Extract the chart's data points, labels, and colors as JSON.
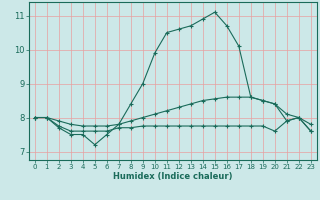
{
  "title": "",
  "xlabel": "Humidex (Indice chaleur)",
  "background_color": "#cce8e8",
  "grid_color": "#e8a0a0",
  "line_color": "#1a6b5a",
  "xlim": [
    -0.5,
    23.5
  ],
  "ylim": [
    6.75,
    11.4
  ],
  "xticks": [
    0,
    1,
    2,
    3,
    4,
    5,
    6,
    7,
    8,
    9,
    10,
    11,
    12,
    13,
    14,
    15,
    16,
    17,
    18,
    19,
    20,
    21,
    22,
    23
  ],
  "yticks": [
    7,
    8,
    9,
    10,
    11
  ],
  "line1_x": [
    0,
    1,
    2,
    3,
    4,
    5,
    6,
    7,
    8,
    9,
    10,
    11,
    12,
    13,
    14,
    15,
    16,
    17,
    18,
    19,
    20,
    21,
    22,
    23
  ],
  "line1_y": [
    8.0,
    8.0,
    7.7,
    7.5,
    7.5,
    7.2,
    7.5,
    7.8,
    8.4,
    9.0,
    9.9,
    10.5,
    10.6,
    10.7,
    10.9,
    11.1,
    10.7,
    10.1,
    8.6,
    8.5,
    8.4,
    7.9,
    8.0,
    7.6
  ],
  "line2_x": [
    0,
    1,
    2,
    3,
    4,
    5,
    6,
    7,
    8,
    9,
    10,
    11,
    12,
    13,
    14,
    15,
    16,
    17,
    18,
    19,
    20,
    21,
    22,
    23
  ],
  "line2_y": [
    8.0,
    8.0,
    7.9,
    7.8,
    7.75,
    7.75,
    7.75,
    7.8,
    7.9,
    8.0,
    8.1,
    8.2,
    8.3,
    8.4,
    8.5,
    8.55,
    8.6,
    8.6,
    8.6,
    8.5,
    8.4,
    8.1,
    8.0,
    7.8
  ],
  "line3_x": [
    0,
    1,
    2,
    3,
    4,
    5,
    6,
    7,
    8,
    9,
    10,
    11,
    12,
    13,
    14,
    15,
    16,
    17,
    18,
    19,
    20,
    21,
    22,
    23
  ],
  "line3_y": [
    8.0,
    8.0,
    7.75,
    7.6,
    7.6,
    7.6,
    7.6,
    7.7,
    7.7,
    7.75,
    7.75,
    7.75,
    7.75,
    7.75,
    7.75,
    7.75,
    7.75,
    7.75,
    7.75,
    7.75,
    7.6,
    7.9,
    8.0,
    7.6
  ]
}
